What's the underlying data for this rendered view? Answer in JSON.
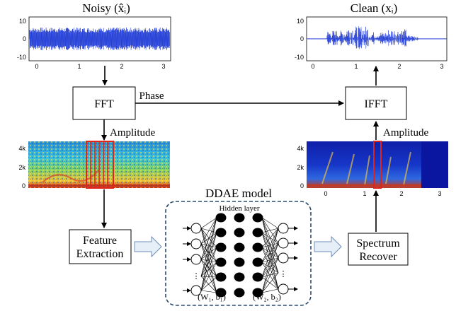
{
  "panels": {
    "noisy_title": "Noisy (x̂ᵢ)",
    "clean_title": "Clean (xᵢ)",
    "wave_yticks": [
      "10",
      "0",
      "-10"
    ],
    "wave_xticks": [
      "0",
      "1",
      "2",
      "3"
    ],
    "spec_yticks": [
      "4k",
      "2k",
      "0"
    ],
    "spec_xticks": [
      "0",
      "1",
      "2",
      "3"
    ]
  },
  "blocks": {
    "fft": "FFT",
    "ifft": "IFFT",
    "feature_line1": "Feature",
    "feature_line2": "Extraction",
    "spectrum_line1": "Spectrum",
    "spectrum_line2": "Recover"
  },
  "edges": {
    "phase": "Phase",
    "amplitude_left": "Amplitude",
    "amplitude_right": "Amplitude"
  },
  "ddae": {
    "title": "DDAE model",
    "hidden_label": "Hidden layer",
    "w1": "(W₁, b₁)",
    "w2": "(W₂, b₂)"
  },
  "colors": {
    "waveform": "#1f3bd6",
    "frame": "#e0241b",
    "arrow_fill": "#e6eef8",
    "arrow_stroke": "#6f8fb8",
    "ddae_border": "#2c4a6b"
  }
}
